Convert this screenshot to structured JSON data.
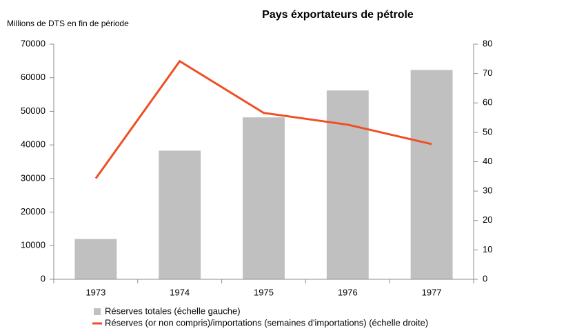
{
  "chart_data": {
    "type": "bar",
    "title": "Pays éxportateurs de pétrole",
    "y_label": "Millions de DTS en fin de période",
    "categories": [
      "1973",
      "1974",
      "1975",
      "1976",
      "1977"
    ],
    "series": [
      {
        "name": "Réserves totales (échelle gauche)",
        "type": "bar",
        "color": "#c0c0c0",
        "axis": "y",
        "values": [
          12000,
          38300,
          48200,
          56200,
          62300
        ]
      },
      {
        "name": "Réserves (or non compris)/importations (semaines d'importations) (échelle droite)",
        "type": "line",
        "color": "#f04e23",
        "axis": "y2",
        "values": [
          34.3,
          74.2,
          56.6,
          52.6,
          46.0
        ]
      }
    ],
    "ylim": [
      0,
      70000
    ],
    "yticks": [
      0,
      10000,
      20000,
      30000,
      40000,
      50000,
      60000,
      70000
    ],
    "y2lim": [
      0,
      80
    ],
    "y2ticks": [
      0,
      10,
      20,
      30,
      40,
      50,
      60,
      70,
      80
    ],
    "grid": false,
    "legend": "bottom"
  }
}
